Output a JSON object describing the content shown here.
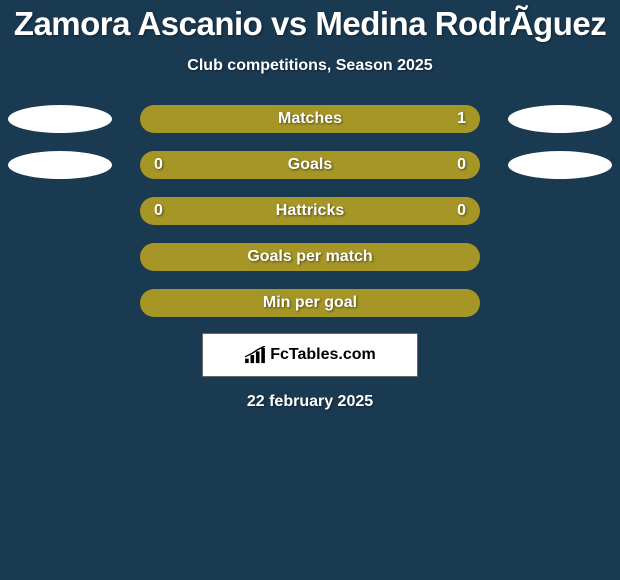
{
  "title": "Zamora Ascanio vs Medina RodrÃ­guez",
  "subtitle": "Club competitions, Season 2025",
  "date": "22 february 2025",
  "logo_text": "FcTables.com",
  "colors": {
    "background": "#1a3a52",
    "bar": "#a59626",
    "ellipse": "#ffffff",
    "text": "#ffffff",
    "logo_bg": "#ffffff",
    "logo_text": "#000000"
  },
  "stats": [
    {
      "label": "Matches",
      "value_left": "",
      "value_right": "1",
      "show_values": true,
      "show_left_ellipse": true,
      "show_right_ellipse": true
    },
    {
      "label": "Goals",
      "value_left": "0",
      "value_right": "0",
      "show_values": true,
      "show_left_ellipse": true,
      "show_right_ellipse": true
    },
    {
      "label": "Hattricks",
      "value_left": "0",
      "value_right": "0",
      "show_values": true,
      "show_left_ellipse": false,
      "show_right_ellipse": false
    },
    {
      "label": "Goals per match",
      "value_left": "",
      "value_right": "",
      "show_values": false,
      "show_left_ellipse": false,
      "show_right_ellipse": false
    },
    {
      "label": "Min per goal",
      "value_left": "",
      "value_right": "",
      "show_values": false,
      "show_left_ellipse": false,
      "show_right_ellipse": false
    }
  ]
}
